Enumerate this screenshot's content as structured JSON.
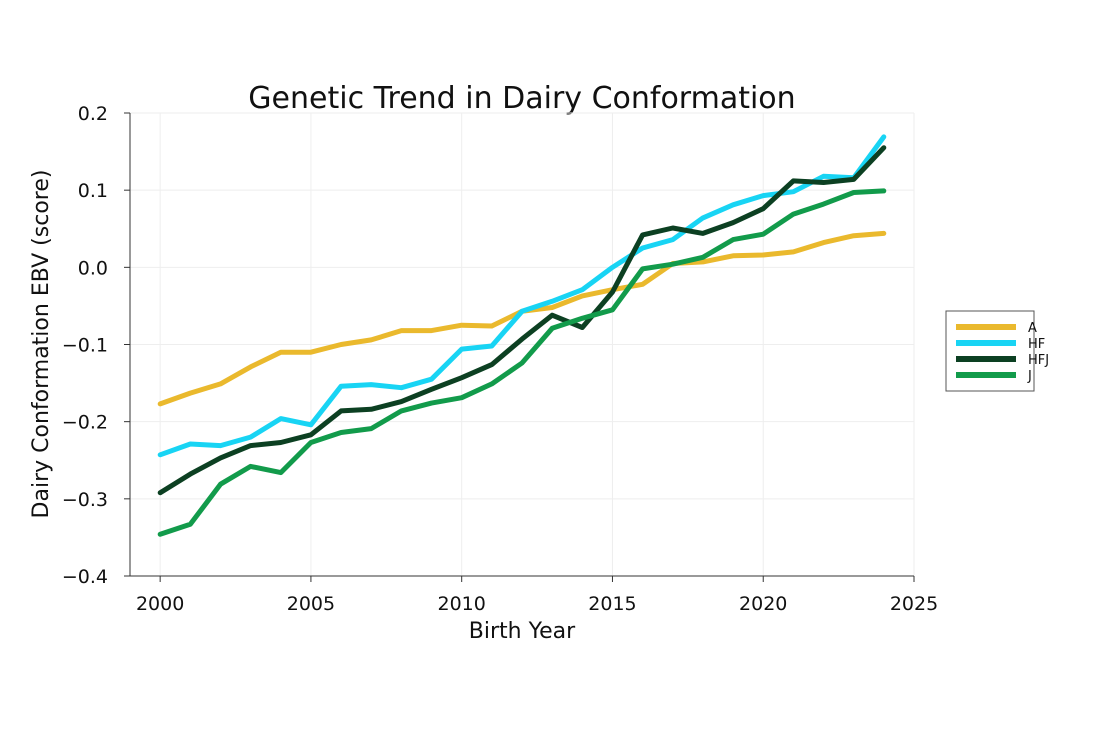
{
  "chart_data": {
    "type": "line",
    "title": "Genetic Trend in Dairy Conformation",
    "xlabel": "Birth Year",
    "ylabel": "Dairy Conformation EBV (score)",
    "xlim": [
      1999,
      2025
    ],
    "ylim": [
      -0.4,
      0.2
    ],
    "xticks": [
      2000,
      2005,
      2010,
      2015,
      2020,
      2025
    ],
    "yticks": [
      -0.4,
      -0.3,
      -0.2,
      -0.1,
      0.0,
      0.1,
      0.2
    ],
    "ytick_labels": [
      "−0.4",
      "−0.3",
      "−0.2",
      "−0.1",
      "0.0",
      "0.1",
      "0.2"
    ],
    "grid": true,
    "legend_position": "right",
    "x": [
      2000,
      2001,
      2002,
      2003,
      2004,
      2005,
      2006,
      2007,
      2008,
      2009,
      2010,
      2011,
      2012,
      2013,
      2014,
      2015,
      2016,
      2017,
      2018,
      2019,
      2020,
      2021,
      2022,
      2023,
      2024
    ],
    "series": [
      {
        "name": "A",
        "color": "#eab92d",
        "values": [
          -0.177,
          -0.163,
          -0.151,
          -0.129,
          -0.11,
          -0.11,
          -0.1,
          -0.094,
          -0.082,
          -0.082,
          -0.075,
          -0.076,
          -0.057,
          -0.052,
          -0.037,
          -0.029,
          -0.022,
          0.005,
          0.007,
          0.015,
          0.016,
          0.02,
          0.032,
          0.041,
          0.044
        ]
      },
      {
        "name": "HF",
        "color": "#18d4f4",
        "values": [
          -0.243,
          -0.229,
          -0.231,
          -0.22,
          -0.196,
          -0.204,
          -0.154,
          -0.152,
          -0.156,
          -0.145,
          -0.106,
          -0.102,
          -0.057,
          -0.044,
          -0.029,
          0.0,
          0.025,
          0.036,
          0.064,
          0.081,
          0.093,
          0.098,
          0.118,
          0.116,
          0.169
        ]
      },
      {
        "name": "HFJ",
        "color": "#0c4022",
        "values": [
          -0.292,
          -0.268,
          -0.247,
          -0.231,
          -0.227,
          -0.217,
          -0.186,
          -0.184,
          -0.174,
          -0.158,
          -0.143,
          -0.126,
          -0.093,
          -0.062,
          -0.078,
          -0.032,
          0.042,
          0.051,
          0.044,
          0.058,
          0.076,
          0.112,
          0.11,
          0.114,
          0.155
        ]
      },
      {
        "name": "J",
        "color": "#129b4b",
        "values": [
          -0.346,
          -0.333,
          -0.281,
          -0.258,
          -0.266,
          -0.227,
          -0.214,
          -0.209,
          -0.186,
          -0.176,
          -0.169,
          -0.151,
          -0.124,
          -0.079,
          -0.066,
          -0.055,
          -0.002,
          0.004,
          0.013,
          0.036,
          0.043,
          0.069,
          0.082,
          0.097,
          0.099
        ]
      }
    ]
  }
}
